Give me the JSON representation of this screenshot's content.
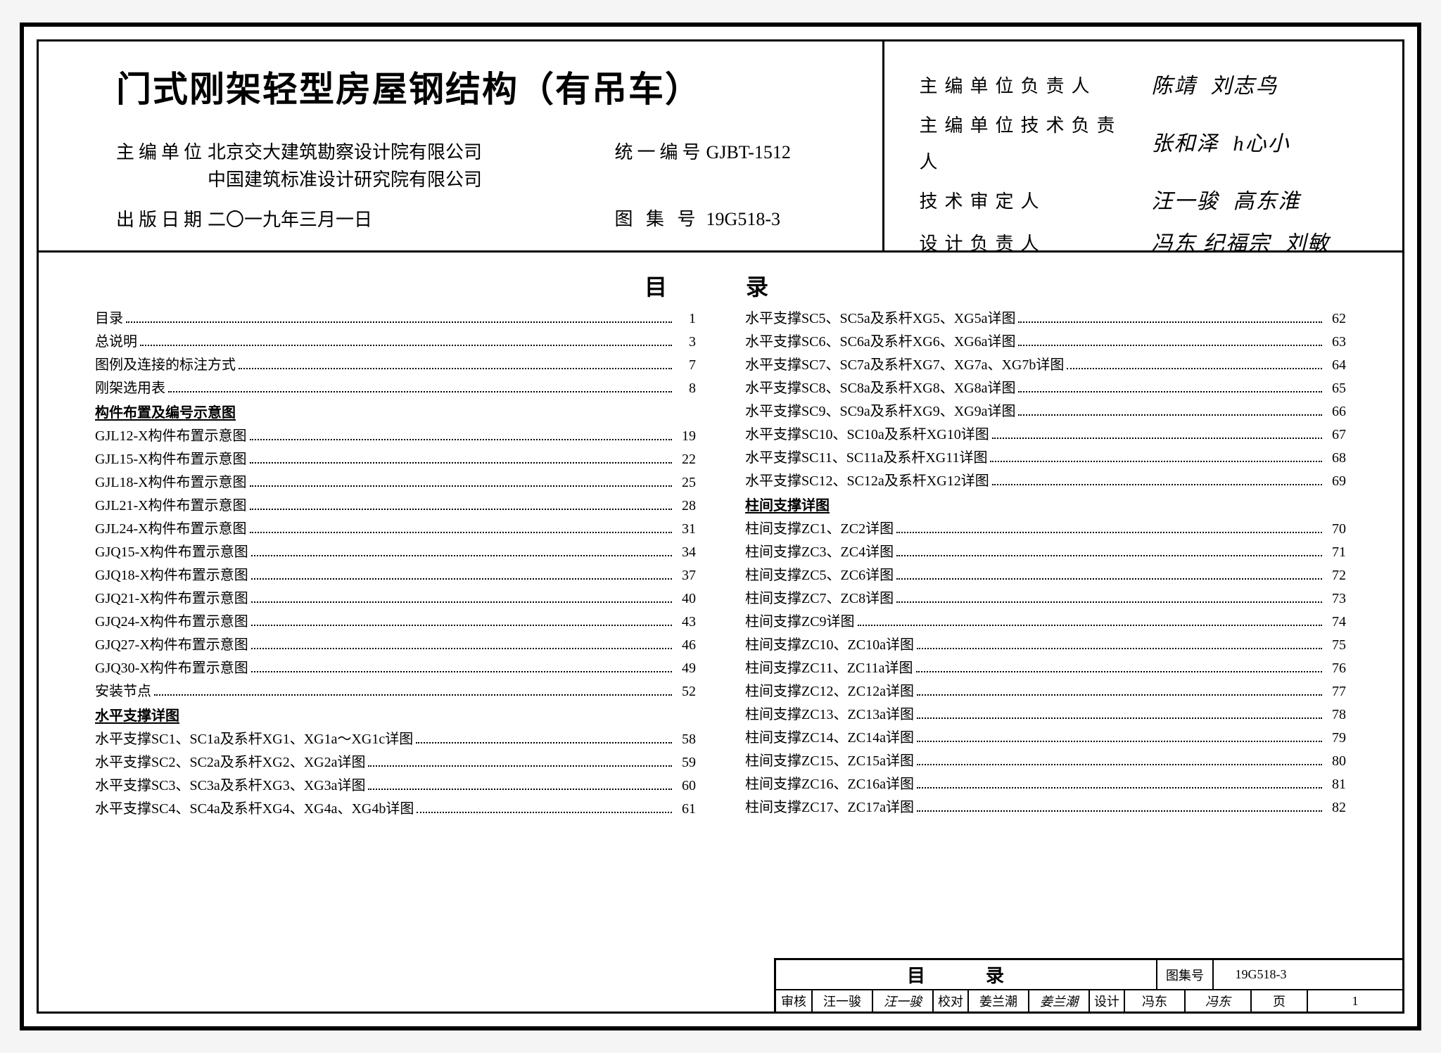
{
  "title": "门式刚架轻型房屋钢结构（有吊车）",
  "editor_label": "主编单位",
  "editor_lines": [
    "北京交大建筑勘察设计院有限公司",
    "中国建筑标准设计研究院有限公司"
  ],
  "pubdate_label": "出版日期",
  "pubdate": "二〇一九年三月一日",
  "code_label": "统一编号",
  "code_val": "GJBT-1512",
  "atlas_label": "图 集 号",
  "atlas_val": "19G518-3",
  "right_labels": [
    "主编单位负责人",
    "主编单位技术负责人",
    "技术审定人",
    "设计负责人"
  ],
  "right_sigs": [
    [
      "陈靖",
      "刘志鸟"
    ],
    [
      "张和泽",
      "h心小"
    ],
    [
      "汪一骏",
      "高东淮"
    ],
    [
      "冯东  纪福宗",
      "刘敏"
    ]
  ],
  "toc_heading": "目　录",
  "left_col": [
    {
      "t": "目录",
      "p": "1"
    },
    {
      "t": "总说明",
      "p": "3"
    },
    {
      "t": "图例及连接的标注方式",
      "p": "7"
    },
    {
      "t": "刚架选用表",
      "p": "8"
    },
    {
      "t": "构件布置及编号示意图",
      "section": true
    },
    {
      "t": "GJL12-X构件布置示意图",
      "p": "19"
    },
    {
      "t": "GJL15-X构件布置示意图",
      "p": "22"
    },
    {
      "t": "GJL18-X构件布置示意图",
      "p": "25"
    },
    {
      "t": "GJL21-X构件布置示意图",
      "p": "28"
    },
    {
      "t": "GJL24-X构件布置示意图",
      "p": "31"
    },
    {
      "t": "GJQ15-X构件布置示意图",
      "p": "34"
    },
    {
      "t": "GJQ18-X构件布置示意图",
      "p": "37"
    },
    {
      "t": "GJQ21-X构件布置示意图",
      "p": "40"
    },
    {
      "t": "GJQ24-X构件布置示意图",
      "p": "43"
    },
    {
      "t": "GJQ27-X构件布置示意图",
      "p": "46"
    },
    {
      "t": "GJQ30-X构件布置示意图",
      "p": "49"
    },
    {
      "t": "安装节点",
      "p": "52"
    },
    {
      "t": "水平支撑详图",
      "section": true
    },
    {
      "t": "水平支撑SC1、SC1a及系杆XG1、XG1a～XG1c详图",
      "p": "58"
    },
    {
      "t": "水平支撑SC2、SC2a及系杆XG2、XG2a详图",
      "p": "59"
    },
    {
      "t": "水平支撑SC3、SC3a及系杆XG3、XG3a详图",
      "p": "60"
    },
    {
      "t": "水平支撑SC4、SC4a及系杆XG4、XG4a、XG4b详图",
      "p": "61"
    }
  ],
  "right_col": [
    {
      "t": "水平支撑SC5、SC5a及系杆XG5、XG5a详图",
      "p": "62"
    },
    {
      "t": "水平支撑SC6、SC6a及系杆XG6、XG6a详图",
      "p": "63"
    },
    {
      "t": "水平支撑SC7、SC7a及系杆XG7、XG7a、XG7b详图",
      "p": "64"
    },
    {
      "t": "水平支撑SC8、SC8a及系杆XG8、XG8a详图",
      "p": "65"
    },
    {
      "t": "水平支撑SC9、SC9a及系杆XG9、XG9a详图",
      "p": "66"
    },
    {
      "t": "水平支撑SC10、SC10a及系杆XG10详图",
      "p": "67"
    },
    {
      "t": "水平支撑SC11、SC11a及系杆XG11详图",
      "p": "68"
    },
    {
      "t": "水平支撑SC12、SC12a及系杆XG12详图",
      "p": "69"
    },
    {
      "t": "柱间支撑详图",
      "section": true
    },
    {
      "t": "柱间支撑ZC1、ZC2详图",
      "p": "70"
    },
    {
      "t": "柱间支撑ZC3、ZC4详图",
      "p": "71"
    },
    {
      "t": "柱间支撑ZC5、ZC6详图",
      "p": "72"
    },
    {
      "t": "柱间支撑ZC7、ZC8详图",
      "p": "73"
    },
    {
      "t": "柱间支撑ZC9详图",
      "p": "74"
    },
    {
      "t": "柱间支撑ZC10、ZC10a详图",
      "p": "75"
    },
    {
      "t": "柱间支撑ZC11、ZC11a详图",
      "p": "76"
    },
    {
      "t": "柱间支撑ZC12、ZC12a详图",
      "p": "77"
    },
    {
      "t": "柱间支撑ZC13、ZC13a详图",
      "p": "78"
    },
    {
      "t": "柱间支撑ZC14、ZC14a详图",
      "p": "79"
    },
    {
      "t": "柱间支撑ZC15、ZC15a详图",
      "p": "80"
    },
    {
      "t": "柱间支撑ZC16、ZC16a详图",
      "p": "81"
    },
    {
      "t": "柱间支撑ZC17、ZC17a详图",
      "p": "82"
    }
  ],
  "tb": {
    "title": "目　录",
    "atlas_k": "图集号",
    "atlas_v": "19G518-3",
    "page_k": "页",
    "page_v": "1",
    "cells": [
      {
        "k": "审核",
        "v": "汪一骏",
        "s": "汪一骏"
      },
      {
        "k": "校对",
        "v": "姜兰潮",
        "s": "姜兰潮"
      },
      {
        "k": "设计",
        "v": "冯东",
        "s": "冯东"
      }
    ]
  }
}
